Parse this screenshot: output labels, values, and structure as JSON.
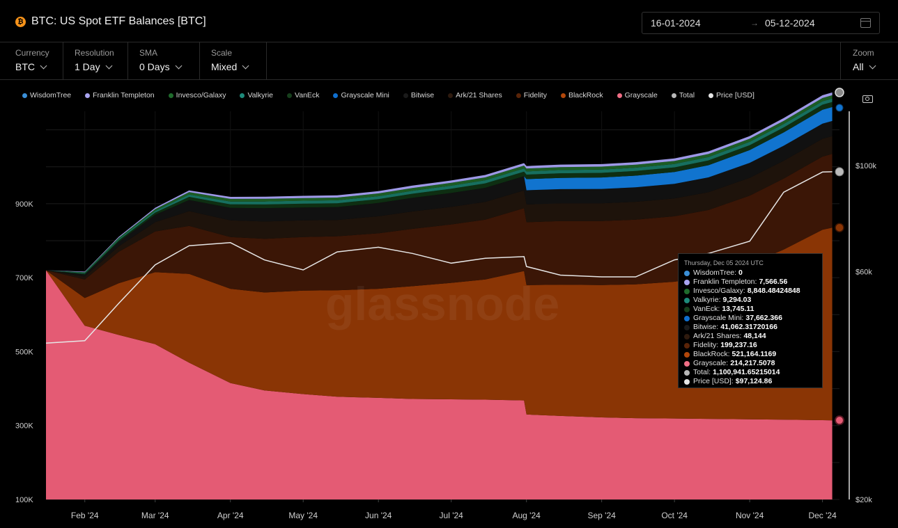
{
  "header": {
    "title": "BTC: US Spot ETF Balances [BTC]",
    "icon": "bitcoin-icon",
    "date_from": "16-01-2024",
    "date_arrow": "→",
    "date_to": "05-12-2024"
  },
  "controls": {
    "currency": {
      "label": "Currency",
      "value": "BTC"
    },
    "resolution": {
      "label": "Resolution",
      "value": "1 Day"
    },
    "sma": {
      "label": "SMA",
      "value": "0 Days"
    },
    "scale": {
      "label": "Scale",
      "value": "Mixed"
    },
    "zoom": {
      "label": "Zoom",
      "value": "All"
    }
  },
  "legend": [
    {
      "name": "WisdomTree",
      "color": "#3a8fd8"
    },
    {
      "name": "Franklin Templeton",
      "color": "#a9a4f0"
    },
    {
      "name": "Invesco/Galaxy",
      "color": "#1f6b2c"
    },
    {
      "name": "Valkyrie",
      "color": "#1d8a7a"
    },
    {
      "name": "VanEck",
      "color": "#163f1c"
    },
    {
      "name": "Grayscale Mini",
      "color": "#0f6fcf"
    },
    {
      "name": "Bitwise",
      "color": "#1a1a1a"
    },
    {
      "name": "Ark/21 Shares",
      "color": "#2e1a0e"
    },
    {
      "name": "Fidelity",
      "color": "#5a2408"
    },
    {
      "name": "BlackRock",
      "color": "#b2470a"
    },
    {
      "name": "Grayscale",
      "color": "#f06e85"
    },
    {
      "name": "Total",
      "color": "#b8b8b8"
    },
    {
      "name": "Price [USD]",
      "color": "#e6e6e6"
    }
  ],
  "watermark": "glassnode",
  "chart_data": {
    "type": "area",
    "stacked": true,
    "x": [
      "2024-01-16",
      "2024-02-01",
      "2024-02-15",
      "2024-03-01",
      "2024-03-15",
      "2024-04-01",
      "2024-04-15",
      "2024-05-01",
      "2024-05-15",
      "2024-06-01",
      "2024-06-15",
      "2024-07-01",
      "2024-07-15",
      "2024-07-31",
      "2024-08-01",
      "2024-08-15",
      "2024-09-01",
      "2024-09-15",
      "2024-10-01",
      "2024-10-15",
      "2024-11-01",
      "2024-11-15",
      "2024-12-01",
      "2024-12-05"
    ],
    "x_tick_labels": [
      "Feb '24",
      "Mar '24",
      "Apr '24",
      "May '24",
      "Jun '24",
      "Jul '24",
      "Aug '24",
      "Sep '24",
      "Oct '24",
      "Nov '24",
      "Dec '24"
    ],
    "y_left_ticks": [
      "100K",
      "300K",
      "500K",
      "700K",
      "900K"
    ],
    "y_right_ticks": [
      "$20k",
      "$60k",
      "$100k"
    ],
    "y_left_range": [
      100000,
      1150000
    ],
    "y_right_scale": "log",
    "y_right_range": [
      20000,
      130000
    ],
    "series": [
      {
        "name": "Grayscale",
        "color": "#e45b74",
        "values": [
          620000,
          470000,
          445000,
          420000,
          370000,
          315000,
          295000,
          285000,
          278000,
          275000,
          272000,
          271000,
          270000,
          268000,
          230000,
          226000,
          222000,
          220000,
          219000,
          218000,
          217000,
          216000,
          214500,
          214217.5078
        ]
      },
      {
        "name": "BlackRock",
        "color": "#8a3505",
        "values": [
          0,
          75000,
          140000,
          195000,
          240000,
          255000,
          265000,
          280000,
          288000,
          295000,
          305000,
          315000,
          325000,
          350000,
          350000,
          355000,
          358000,
          362000,
          370000,
          385000,
          420000,
          460000,
          515000,
          521164.1169
        ]
      },
      {
        "name": "Fidelity",
        "color": "#3b1606",
        "values": [
          0,
          50000,
          85000,
          110000,
          130000,
          140000,
          145000,
          145000,
          146000,
          150000,
          155000,
          158000,
          162000,
          170000,
          170000,
          172000,
          173000,
          175000,
          177000,
          180000,
          185000,
          192000,
          198000,
          199237.16
        ]
      },
      {
        "name": "Ark/21 Shares",
        "color": "#1e130b",
        "values": [
          0,
          8000,
          15000,
          25000,
          40000,
          45000,
          47000,
          45000,
          44000,
          46000,
          47000,
          47500,
          48000,
          48000,
          48000,
          48000,
          48000,
          48200,
          48200,
          48200,
          48200,
          48200,
          48144,
          48144
        ]
      },
      {
        "name": "Bitwise",
        "color": "#111111",
        "values": [
          0,
          5000,
          12000,
          20000,
          30000,
          34000,
          36000,
          35000,
          35000,
          36000,
          37000,
          37500,
          38000,
          38500,
          38500,
          38500,
          39000,
          39200,
          39500,
          40000,
          40300,
          40600,
          41000,
          41062.3172
        ]
      },
      {
        "name": "Grayscale Mini",
        "color": "#1174cf",
        "values": [
          0,
          0,
          0,
          0,
          0,
          0,
          0,
          0,
          0,
          0,
          0,
          0,
          0,
          0,
          30000,
          30500,
          31000,
          31500,
          32000,
          33000,
          34500,
          36000,
          37500,
          37662.366
        ]
      },
      {
        "name": "VanEck",
        "color": "#0e2e12",
        "values": [
          0,
          3000,
          4500,
          6000,
          8500,
          9500,
          10000,
          10200,
          10300,
          10500,
          11000,
          11500,
          12000,
          12300,
          12300,
          12400,
          12500,
          12600,
          12700,
          12900,
          13200,
          13500,
          13700,
          13745.11
        ]
      },
      {
        "name": "Valkyrie",
        "color": "#176f5f",
        "values": [
          0,
          2000,
          3000,
          4500,
          6500,
          7500,
          8000,
          8000,
          8000,
          8000,
          8200,
          8400,
          8600,
          8700,
          8700,
          8800,
          8900,
          9000,
          9050,
          9100,
          9150,
          9200,
          9280,
          9294.03
        ]
      },
      {
        "name": "Invesco/Galaxy",
        "color": "#1c5c25",
        "values": [
          0,
          2000,
          3500,
          5000,
          6500,
          7000,
          7200,
          7200,
          7300,
          7400,
          7500,
          7600,
          7700,
          7800,
          7800,
          7900,
          8000,
          8100,
          8200,
          8300,
          8500,
          8700,
          8820,
          8848.48424848
        ]
      },
      {
        "name": "Franklin Templeton",
        "color": "#9d98e6",
        "values": [
          0,
          1500,
          2500,
          3500,
          4500,
          5500,
          5700,
          6000,
          6100,
          6200,
          6300,
          6400,
          6500,
          6600,
          6600,
          6700,
          6800,
          6900,
          7000,
          7100,
          7200,
          7350,
          7520,
          7566.56
        ]
      },
      {
        "name": "WisdomTree",
        "color": "#3a8fd8",
        "values": [
          0,
          0,
          0,
          0,
          0,
          0,
          0,
          0,
          0,
          0,
          0,
          0,
          0,
          0,
          0,
          0,
          0,
          0,
          0,
          0,
          0,
          0,
          0,
          0
        ]
      }
    ],
    "price_series": {
      "name": "Price [USD]",
      "color": "#e6e6e6",
      "values": [
        42500,
        43000,
        51500,
        62000,
        68000,
        69000,
        63500,
        60500,
        66000,
        67500,
        65500,
        62500,
        64000,
        64500,
        61500,
        59000,
        58500,
        58500,
        63500,
        65500,
        69500,
        88000,
        97000,
        97124.86
      ]
    },
    "tooltip": {
      "date": "Thursday, Dec 05 2024 UTC",
      "rows": [
        {
          "name": "WisdomTree",
          "value": "0",
          "color": "#3a8fd8"
        },
        {
          "name": "Franklin Templeton",
          "value": "7,566.56",
          "color": "#a9a4f0"
        },
        {
          "name": "Invesco/Galaxy",
          "value": "8,848.48424848",
          "color": "#1f6b2c"
        },
        {
          "name": "Valkyrie",
          "value": "9,294.03",
          "color": "#1d8a7a"
        },
        {
          "name": "VanEck",
          "value": "13,745.11",
          "color": "#163f1c"
        },
        {
          "name": "Grayscale Mini",
          "value": "37,662.366",
          "color": "#0f6fcf"
        },
        {
          "name": "Bitwise",
          "value": "41,062.31720166",
          "color": "#1a1a1a"
        },
        {
          "name": "Ark/21 Shares",
          "value": "48,144",
          "color": "#2e1a0e"
        },
        {
          "name": "Fidelity",
          "value": "199,237.16",
          "color": "#5a2408"
        },
        {
          "name": "BlackRock",
          "value": "521,164.1169",
          "color": "#b2470a"
        },
        {
          "name": "Grayscale",
          "value": "214,217.5078",
          "color": "#f06e85"
        },
        {
          "name": "Total",
          "value": "1,100,941.65215014",
          "color": "#b8b8b8"
        },
        {
          "name": "Price [USD]",
          "value": "$97,124.86",
          "color": "#e6e6e6"
        }
      ]
    }
  }
}
